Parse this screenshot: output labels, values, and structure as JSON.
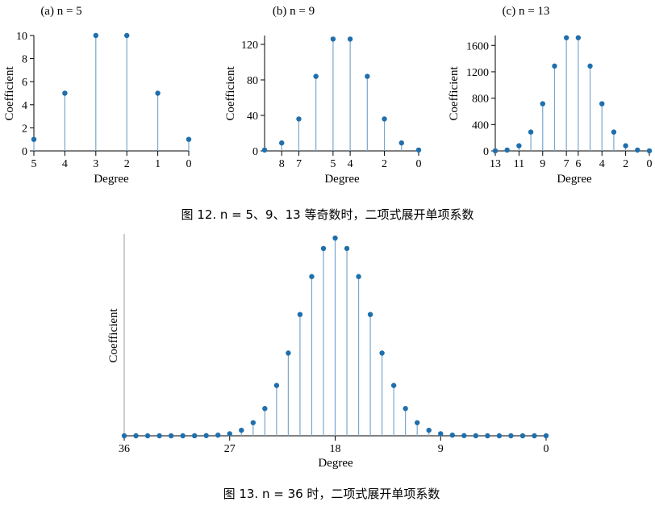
{
  "colors": {
    "stem": "#7aa7cc",
    "marker": "#1f6fad",
    "axis": "#000000",
    "yaxis": "#9a9a9a"
  },
  "figure12_caption": "图 12. n = 5、9、13 等奇数时，二项式展开单项系数",
  "figure13_caption": "图 13. n = 36 时，二项式展开单项系数",
  "chart_data": [
    {
      "type": "stem",
      "title": "(a) n = 5",
      "xlabel": "Degree",
      "ylabel": "Coefficient",
      "x_reversed": true,
      "xlim": [
        5,
        0
      ],
      "ylim": [
        0,
        10
      ],
      "xticks": [
        5,
        4,
        3,
        2,
        1,
        0
      ],
      "yticks": [
        0,
        2,
        4,
        6,
        8,
        10
      ],
      "x": [
        5,
        4,
        3,
        2,
        1,
        0
      ],
      "y": [
        1,
        5,
        10,
        10,
        5,
        1
      ]
    },
    {
      "type": "stem",
      "title": "(b) n = 9",
      "xlabel": "Degree",
      "ylabel": "Coefficient",
      "x_reversed": true,
      "xlim": [
        9,
        0
      ],
      "ylim": [
        0,
        130
      ],
      "xticks": [
        8,
        7,
        5,
        4,
        2,
        0
      ],
      "yticks": [
        0,
        40,
        80,
        120
      ],
      "x": [
        9,
        8,
        7,
        6,
        5,
        4,
        3,
        2,
        1,
        0
      ],
      "y": [
        1,
        9,
        36,
        84,
        126,
        126,
        84,
        36,
        9,
        1
      ]
    },
    {
      "type": "stem",
      "title": "(c) n = 13",
      "xlabel": "Degree",
      "ylabel": "Coefficient",
      "x_reversed": true,
      "xlim": [
        13,
        0
      ],
      "ylim": [
        0,
        1750
      ],
      "xticks": [
        13,
        11,
        9,
        7,
        6,
        4,
        2,
        0
      ],
      "yticks": [
        0,
        400,
        800,
        1200,
        1600
      ],
      "x": [
        13,
        12,
        11,
        10,
        9,
        8,
        7,
        6,
        5,
        4,
        3,
        2,
        1,
        0
      ],
      "y": [
        1,
        13,
        78,
        286,
        715,
        1287,
        1716,
        1716,
        1287,
        715,
        286,
        78,
        13,
        1
      ]
    },
    {
      "type": "stem",
      "title": "",
      "xlabel": "Degree",
      "ylabel": "Coefficient",
      "x_reversed": true,
      "xlim": [
        36,
        0
      ],
      "ylim": [
        0,
        9075135300
      ],
      "xticks": [
        36,
        27,
        18,
        9,
        0
      ],
      "yticks": [],
      "x": [
        36,
        35,
        34,
        33,
        32,
        31,
        30,
        29,
        28,
        27,
        26,
        25,
        24,
        23,
        22,
        21,
        20,
        19,
        18,
        17,
        16,
        15,
        14,
        13,
        12,
        11,
        10,
        9,
        8,
        7,
        6,
        5,
        4,
        3,
        2,
        1,
        0
      ],
      "y": [
        1,
        36,
        630,
        7140,
        58905,
        376992,
        1947792,
        8347680,
        30260340,
        94143280,
        254186856,
        600805296,
        1251677700,
        2310789600,
        3796297200,
        5567902560,
        7307872110,
        8597496600,
        9075135300,
        8597496600,
        7307872110,
        5567902560,
        3796297200,
        2310789600,
        1251677700,
        600805296,
        254186856,
        94143280,
        30260340,
        8347680,
        1947792,
        376992,
        58905,
        7140,
        630,
        36,
        1
      ]
    }
  ]
}
